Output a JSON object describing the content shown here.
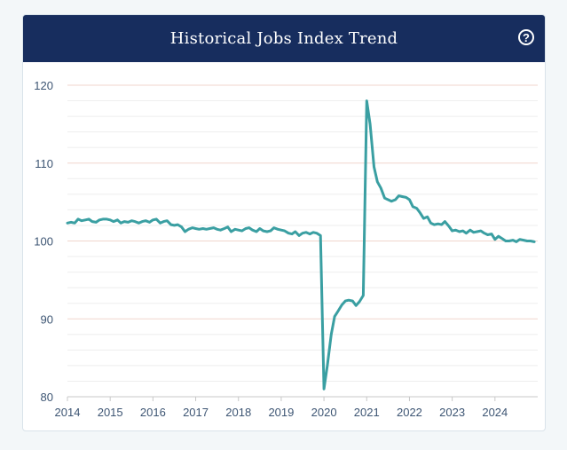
{
  "header": {
    "title": "Historical Jobs Index Trend",
    "help_symbol": "?"
  },
  "colors": {
    "header_bg": "#172d5e",
    "line": "#3a9fa2",
    "major_grid": "#f0d6cd",
    "minor_grid": "#eeeeee",
    "axis_text": "#3d5573"
  },
  "chart_data": {
    "type": "line",
    "title": "Historical Jobs Index Trend",
    "xlabel": "",
    "ylabel": "",
    "xlim": [
      2014.0,
      2025.0
    ],
    "ylim": [
      80,
      120
    ],
    "yticks": [
      {
        "value": 120,
        "label": "120"
      },
      {
        "value": 110,
        "label": "110"
      },
      {
        "value": 100,
        "label": "100"
      },
      {
        "value": 90,
        "label": "90"
      },
      {
        "value": 80,
        "label": "80"
      }
    ],
    "xticks": [
      {
        "value": 2014,
        "label": "2014"
      },
      {
        "value": 2015,
        "label": "2015"
      },
      {
        "value": 2016,
        "label": "2016"
      },
      {
        "value": 2017,
        "label": "2017"
      },
      {
        "value": 2018,
        "label": "2018"
      },
      {
        "value": 2019,
        "label": "2019"
      },
      {
        "value": 2020,
        "label": "2020"
      },
      {
        "value": 2021,
        "label": "2021"
      },
      {
        "value": 2022,
        "label": "2022"
      },
      {
        "value": 2023,
        "label": "2023"
      },
      {
        "value": 2024,
        "label": "2024"
      }
    ],
    "series": [
      {
        "name": "Jobs Index",
        "x": [
          2014.0,
          2014.08,
          2014.17,
          2014.25,
          2014.33,
          2014.42,
          2014.5,
          2014.58,
          2014.67,
          2014.75,
          2014.83,
          2014.92,
          2015.0,
          2015.08,
          2015.17,
          2015.25,
          2015.33,
          2015.42,
          2015.5,
          2015.58,
          2015.67,
          2015.75,
          2015.83,
          2015.92,
          2016.0,
          2016.08,
          2016.17,
          2016.25,
          2016.33,
          2016.42,
          2016.5,
          2016.58,
          2016.67,
          2016.75,
          2016.83,
          2016.92,
          2017.0,
          2017.08,
          2017.17,
          2017.25,
          2017.33,
          2017.42,
          2017.5,
          2017.58,
          2017.67,
          2017.75,
          2017.83,
          2017.92,
          2018.0,
          2018.08,
          2018.17,
          2018.25,
          2018.33,
          2018.42,
          2018.5,
          2018.58,
          2018.67,
          2018.75,
          2018.83,
          2018.92,
          2019.0,
          2019.08,
          2019.17,
          2019.25,
          2019.33,
          2019.42,
          2019.5,
          2019.58,
          2019.67,
          2019.75,
          2019.83,
          2019.92,
          2020.0,
          2020.08,
          2020.17,
          2020.25,
          2020.33,
          2020.42,
          2020.5,
          2020.58,
          2020.67,
          2020.75,
          2020.83,
          2020.92,
          2021.0,
          2021.08,
          2021.17,
          2021.25,
          2021.33,
          2021.42,
          2021.5,
          2021.58,
          2021.67,
          2021.75,
          2021.83,
          2021.92,
          2022.0,
          2022.08,
          2022.17,
          2022.25,
          2022.33,
          2022.42,
          2022.5,
          2022.58,
          2022.67,
          2022.75,
          2022.83,
          2022.92,
          2023.0,
          2023.08,
          2023.17,
          2023.25,
          2023.33,
          2023.42,
          2023.5,
          2023.58,
          2023.67,
          2023.75,
          2023.83,
          2023.92,
          2024.0,
          2024.08,
          2024.17,
          2024.25,
          2024.33,
          2024.42,
          2024.5,
          2024.58,
          2024.67,
          2024.75,
          2024.83,
          2024.92
        ],
        "values": [
          102.3,
          102.4,
          102.3,
          102.8,
          102.6,
          102.7,
          102.8,
          102.5,
          102.4,
          102.7,
          102.8,
          102.8,
          102.7,
          102.5,
          102.7,
          102.3,
          102.5,
          102.4,
          102.6,
          102.5,
          102.3,
          102.5,
          102.6,
          102.4,
          102.7,
          102.8,
          102.3,
          102.5,
          102.6,
          102.1,
          102.0,
          102.1,
          101.8,
          101.2,
          101.5,
          101.7,
          101.6,
          101.5,
          101.6,
          101.5,
          101.6,
          101.7,
          101.5,
          101.4,
          101.6,
          101.8,
          101.2,
          101.5,
          101.4,
          101.3,
          101.6,
          101.7,
          101.4,
          101.2,
          101.6,
          101.3,
          101.2,
          101.3,
          101.7,
          101.5,
          101.4,
          101.3,
          101.0,
          100.9,
          101.2,
          100.7,
          101.0,
          101.1,
          100.9,
          101.1,
          101.0,
          100.7,
          81.0,
          84.0,
          88.0,
          90.3,
          91.0,
          91.8,
          92.3,
          92.4,
          92.3,
          91.7,
          92.2,
          93.0,
          118.0,
          115.0,
          109.5,
          107.6,
          106.8,
          105.5,
          105.3,
          105.1,
          105.3,
          105.8,
          105.7,
          105.6,
          105.3,
          104.4,
          104.2,
          103.6,
          102.9,
          103.1,
          102.3,
          102.1,
          102.2,
          102.1,
          102.5,
          101.9,
          101.3,
          101.4,
          101.2,
          101.3,
          101.0,
          101.4,
          101.1,
          101.2,
          101.3,
          101.0,
          100.8,
          100.9,
          100.2,
          100.6,
          100.3,
          100.0,
          100.0,
          100.1,
          99.9,
          100.2,
          100.1,
          100.0,
          100.0,
          99.9
        ]
      }
    ]
  }
}
